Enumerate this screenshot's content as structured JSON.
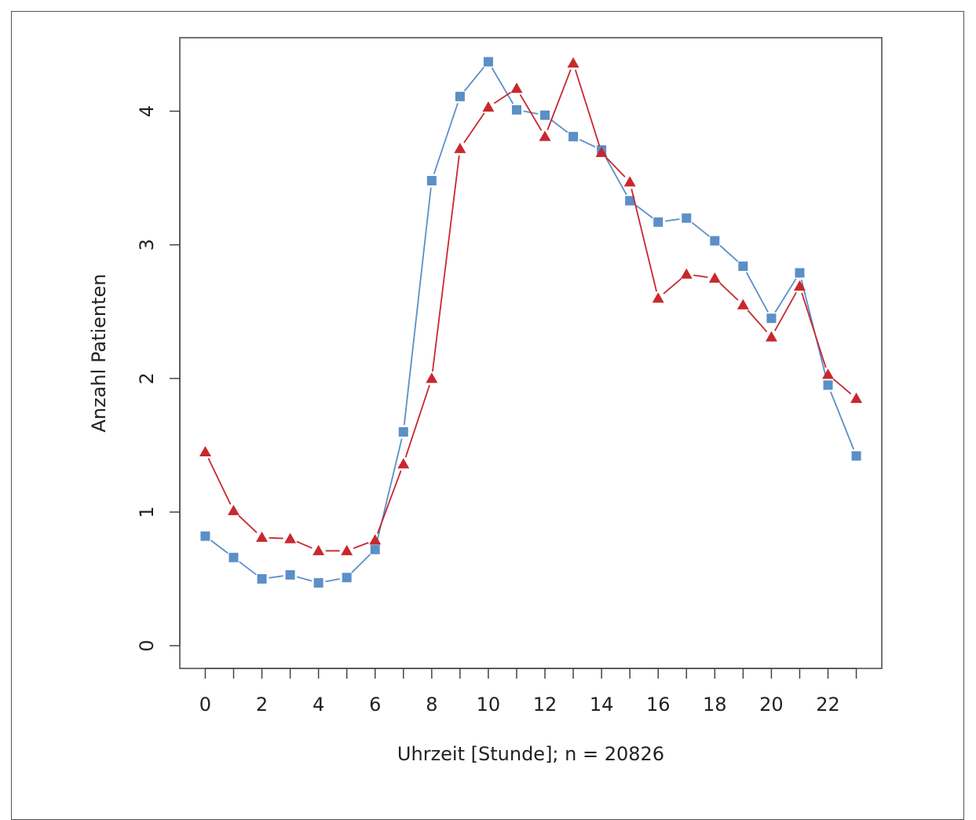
{
  "chart_data": {
    "type": "line",
    "xlabel": "Uhrzeit [Stunde]; n = 20826",
    "ylabel": "Anzahl Patienten",
    "xlim": [
      -0.9,
      23.9
    ],
    "ylim": [
      -0.17,
      4.55
    ],
    "x_ticks": [
      0,
      2,
      4,
      6,
      8,
      10,
      12,
      14,
      16,
      18,
      20,
      22
    ],
    "y_ticks": [
      0,
      1,
      2,
      3,
      4
    ],
    "grid": false,
    "x": [
      0,
      1,
      2,
      3,
      4,
      5,
      6,
      7,
      8,
      9,
      10,
      11,
      12,
      13,
      14,
      15,
      16,
      17,
      18,
      19,
      20,
      21,
      22,
      23
    ],
    "series": [
      {
        "marker": "square",
        "color": "#5b8fc7",
        "values": [
          0.82,
          0.66,
          0.5,
          0.53,
          0.47,
          0.51,
          0.72,
          1.6,
          3.48,
          4.11,
          4.37,
          4.01,
          3.97,
          3.81,
          3.71,
          3.33,
          3.17,
          3.2,
          3.03,
          2.84,
          2.45,
          2.79,
          1.95,
          1.42
        ]
      },
      {
        "marker": "triangle",
        "color": "#c8282e",
        "values": [
          1.45,
          1.01,
          0.81,
          0.8,
          0.71,
          0.71,
          0.79,
          1.36,
          2.0,
          3.72,
          4.03,
          4.17,
          3.81,
          4.36,
          3.69,
          3.47,
          2.6,
          2.78,
          2.75,
          2.55,
          2.31,
          2.69,
          2.03,
          1.85
        ]
      }
    ]
  }
}
